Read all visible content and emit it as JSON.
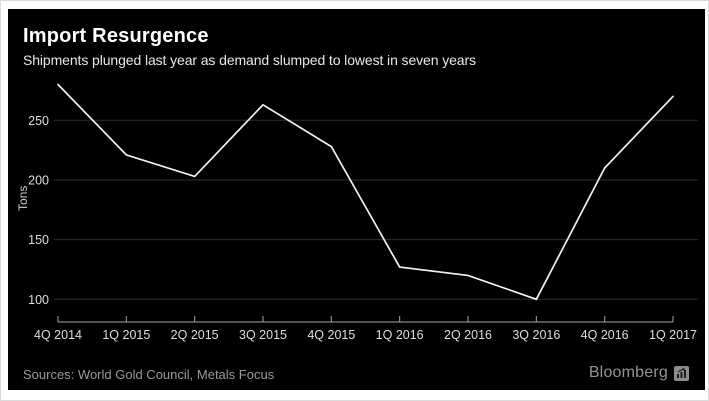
{
  "page": {
    "title": "Import Resurgence",
    "subtitle": "Shipments plunged last year as demand slumped to lowest in seven years",
    "sources": "Sources: World Gold Council, Metals Focus",
    "branding": "Bloomberg"
  },
  "chart_data": {
    "type": "line",
    "title": "Import Resurgence",
    "subtitle": "Shipments plunged last year as demand slumped to lowest in seven years",
    "ylabel": "Tons",
    "categories": [
      "4Q 2014",
      "1Q 2015",
      "2Q 2015",
      "3Q 2015",
      "4Q 2015",
      "1Q 2016",
      "2Q 2016",
      "3Q 2016",
      "4Q 2016",
      "1Q 2017"
    ],
    "values": [
      280,
      221,
      203,
      263,
      228,
      127,
      120,
      100,
      210,
      270
    ],
    "yticks": [
      100,
      150,
      200,
      250
    ],
    "ylim": [
      81,
      285
    ],
    "grid": "horizontal",
    "legend": "none"
  },
  "colors": {
    "background": "#000000",
    "line": "#f2f2f2",
    "grid": "#2e2e2e",
    "axis": "#a6a6a6",
    "tick_label": "#dedede",
    "source_text": "#999999",
    "brand": "#949494"
  }
}
